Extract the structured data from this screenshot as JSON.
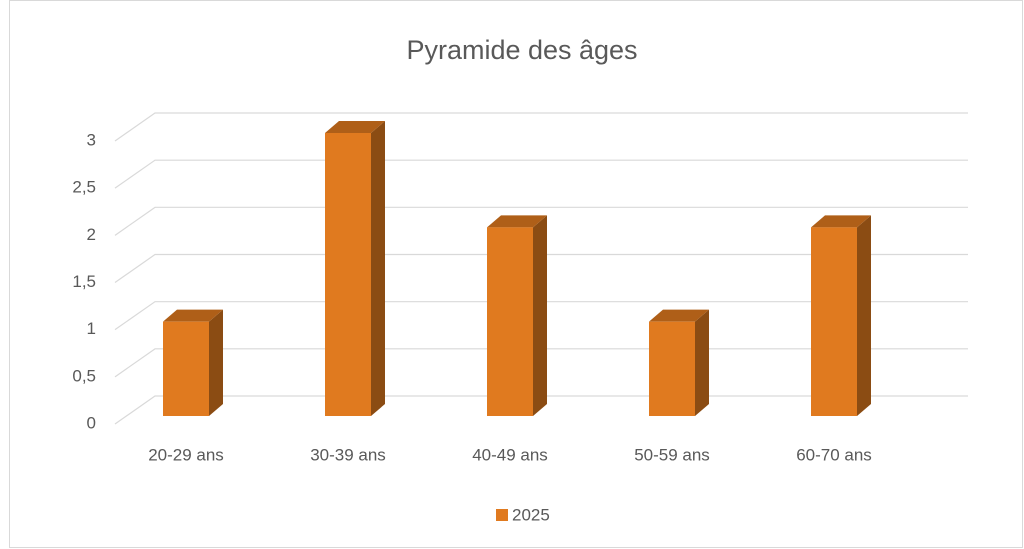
{
  "chart_data": {
    "type": "bar3d",
    "title": "Pyramide des âges",
    "categories": [
      "20-29 ans",
      "30-39 ans",
      "40-49 ans",
      "50-59 ans",
      "60-70 ans"
    ],
    "series": [
      {
        "name": "2025",
        "color": "#e07a1f",
        "values": [
          1,
          3,
          2,
          1,
          2
        ]
      }
    ],
    "ylim": [
      0,
      3
    ],
    "yticks": [
      0,
      {
        "value": 0.5,
        "label": "0,5"
      },
      1,
      {
        "value": 1.5,
        "label": "1,5"
      },
      2,
      {
        "value": 2.5,
        "label": "2,5"
      },
      3
    ],
    "grid": true,
    "legend": "bottom"
  }
}
